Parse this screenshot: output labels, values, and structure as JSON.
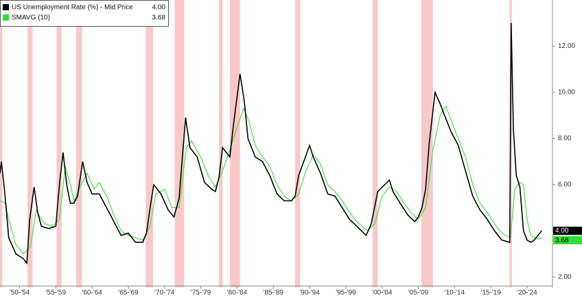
{
  "chart_data": {
    "type": "line",
    "xlim": [
      1949.8,
      2026
    ],
    "ylim": [
      1.55,
      14
    ],
    "yticks": [
      {
        "value": 2,
        "label": "2.00"
      },
      {
        "value": 4,
        "label": "4.00"
      },
      {
        "value": 6,
        "label": "6.00"
      },
      {
        "value": 8,
        "label": "8.00"
      },
      {
        "value": 10,
        "label": "10.00"
      },
      {
        "value": 12,
        "label": "12.00"
      }
    ],
    "xticks": [
      {
        "value": 1952.5,
        "label": "'50-'54"
      },
      {
        "value": 1957.5,
        "label": "'55-'59"
      },
      {
        "value": 1962.5,
        "label": "'60-'64"
      },
      {
        "value": 1967.5,
        "label": "'65-'69"
      },
      {
        "value": 1972.5,
        "label": "'70-'74"
      },
      {
        "value": 1977.5,
        "label": "'75-'79"
      },
      {
        "value": 1982.5,
        "label": "'80-'84"
      },
      {
        "value": 1987.5,
        "label": "'85-'89"
      },
      {
        "value": 1992.5,
        "label": "'90-'94"
      },
      {
        "value": 1997.5,
        "label": "'95-'99"
      },
      {
        "value": 2002.5,
        "label": "'00-'04"
      },
      {
        "value": 2007.5,
        "label": "'05-'09"
      },
      {
        "value": 2012.5,
        "label": "'10-'14"
      },
      {
        "value": 2017.5,
        "label": "'15-'19"
      },
      {
        "value": 2022.5,
        "label": "'20-'24"
      }
    ],
    "recession_color": "#f7b5b5",
    "recessions": [
      [
        1949.8,
        1950.1
      ],
      [
        1953.6,
        1954.3
      ],
      [
        1957.6,
        1958.3
      ],
      [
        1960.3,
        1961.1
      ],
      [
        1969.9,
        1970.9
      ],
      [
        1973.9,
        1975.2
      ],
      [
        1980.0,
        1980.5
      ],
      [
        1981.5,
        1982.9
      ],
      [
        1990.5,
        1991.2
      ],
      [
        2001.2,
        2001.9
      ],
      [
        2007.9,
        2009.5
      ],
      [
        2020.1,
        2020.4
      ]
    ],
    "series": [
      {
        "name": "US Unemployment Rate (%) - Mid Price",
        "color": "#000000",
        "last_value": 4.0,
        "last_label": "4.00",
        "x": [
          1949.8,
          1950.0,
          1950.5,
          1951,
          1952,
          1953,
          1953.5,
          1953.9,
          1954.5,
          1955,
          1955.5,
          1956.5,
          1957.5,
          1958,
          1958.5,
          1959,
          1959.5,
          1960,
          1960.5,
          1961.2,
          1961.8,
          1962.5,
          1963.5,
          1964.5,
          1965.5,
          1966.5,
          1967.5,
          1968.5,
          1969.5,
          1970,
          1970.5,
          1971,
          1972,
          1973,
          1973.8,
          1974.5,
          1975.4,
          1976,
          1977,
          1978,
          1979,
          1979.5,
          1980,
          1980.5,
          1981,
          1981.5,
          1982,
          1982.9,
          1983.5,
          1984,
          1985,
          1986,
          1987,
          1988,
          1989,
          1990,
          1990.5,
          1991,
          1992.5,
          1993,
          1994,
          1995,
          1996,
          1997,
          1998,
          1999,
          2000.3,
          2001,
          2001.9,
          2003.5,
          2004,
          2005,
          2006,
          2007,
          2007.5,
          2008,
          2008.5,
          2009,
          2009.8,
          2010.5,
          2011,
          2012,
          2013,
          2014,
          2015,
          2016,
          2017,
          2018,
          2019,
          2020.1,
          2020.3,
          2020.6,
          2021,
          2021.5,
          2022,
          2022.5,
          2023,
          2023.5,
          2024,
          2024.5
        ],
        "values": [
          6.5,
          7.0,
          5.5,
          3.7,
          3.0,
          2.8,
          2.6,
          4.5,
          5.9,
          4.8,
          4.2,
          4.1,
          4.2,
          6.0,
          7.4,
          6.0,
          5.2,
          5.2,
          5.5,
          7.0,
          6.1,
          5.6,
          5.6,
          5.0,
          4.4,
          3.8,
          3.9,
          3.5,
          3.5,
          3.9,
          5.0,
          6.0,
          5.6,
          4.9,
          4.6,
          5.4,
          8.9,
          7.6,
          7.2,
          6.1,
          5.8,
          5.7,
          6.3,
          7.6,
          7.4,
          7.2,
          8.6,
          10.8,
          9.6,
          8.0,
          7.2,
          7.0,
          6.4,
          5.6,
          5.3,
          5.3,
          5.5,
          6.4,
          7.7,
          7.2,
          6.5,
          5.6,
          5.5,
          5.0,
          4.5,
          4.2,
          3.8,
          4.3,
          5.7,
          6.2,
          5.7,
          5.2,
          4.7,
          4.4,
          4.6,
          5.0,
          5.8,
          7.8,
          10.0,
          9.5,
          9.1,
          8.3,
          7.7,
          6.6,
          5.5,
          4.9,
          4.5,
          4.0,
          3.6,
          3.5,
          13.0,
          8.4,
          6.4,
          5.9,
          4.0,
          3.6,
          3.5,
          3.6,
          3.8,
          4.0
        ]
      },
      {
        "name": "SMAVG (10)",
        "color": "#33dd33",
        "last_value": 3.68,
        "last_label": "3.68",
        "x": [
          1949.8,
          1950.5,
          1951,
          1952,
          1953,
          1954,
          1954.8,
          1955.5,
          1956,
          1957,
          1958,
          1958.8,
          1959.5,
          1960,
          1961,
          1961.8,
          1962.8,
          1963.5,
          1964.5,
          1965.5,
          1966.5,
          1967.5,
          1968.5,
          1969.5,
          1970.5,
          1971.3,
          1972.5,
          1973.5,
          1974.5,
          1975.5,
          1976.2,
          1977.5,
          1978.5,
          1979.5,
          1980.5,
          1981.5,
          1982.5,
          1983.4,
          1984.2,
          1985,
          1986,
          1987,
          1988,
          1989,
          1990,
          1991,
          1992,
          1993,
          1994,
          1995,
          1996,
          1997,
          1998,
          1999,
          2000.5,
          2001.5,
          2002.5,
          2003.5,
          2004.5,
          2005.5,
          2006.5,
          2007.5,
          2008.5,
          2009.5,
          2010.5,
          2011.3,
          2012,
          2013,
          2014,
          2015,
          2016,
          2017,
          2018,
          2019,
          2020.2,
          2020.8,
          2021.5,
          2022,
          2022.5,
          2023,
          2024,
          2024.5
        ],
        "values": [
          5.3,
          5.2,
          4.5,
          3.4,
          3.0,
          3.3,
          4.9,
          4.5,
          4.3,
          4.2,
          4.5,
          6.8,
          6.0,
          5.3,
          6.0,
          6.5,
          5.8,
          6.1,
          5.5,
          4.7,
          4.0,
          3.8,
          3.7,
          3.6,
          4.2,
          5.6,
          5.8,
          5.0,
          5.0,
          7.6,
          7.9,
          7.2,
          6.4,
          5.9,
          6.6,
          7.5,
          8.5,
          9.3,
          8.7,
          7.7,
          7.2,
          6.8,
          6.0,
          5.5,
          5.3,
          5.6,
          6.6,
          7.3,
          6.9,
          6.0,
          5.7,
          5.3,
          4.8,
          4.4,
          4.0,
          4.3,
          5.5,
          5.9,
          5.7,
          5.2,
          4.8,
          4.5,
          5.0,
          7.5,
          9.0,
          9.4,
          8.8,
          8.0,
          7.2,
          6.0,
          5.2,
          4.8,
          4.3,
          3.9,
          3.7,
          5.8,
          6.1,
          6.0,
          4.5,
          3.8,
          3.65,
          3.68
        ]
      }
    ]
  }
}
